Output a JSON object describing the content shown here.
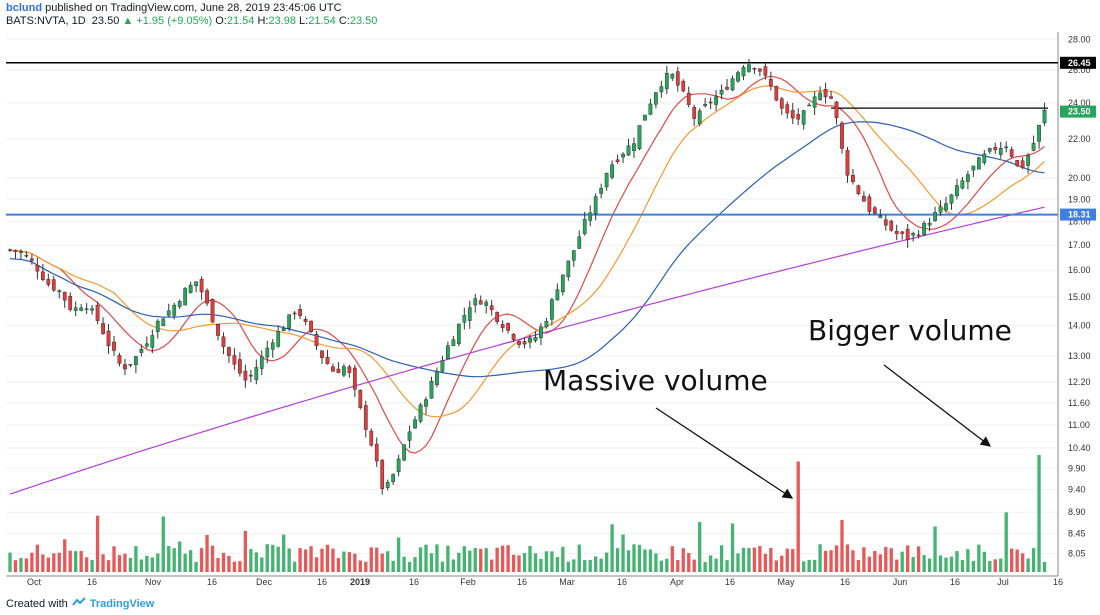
{
  "header": {
    "user": "bclund",
    "published": "published on TradingView.com, June 28, 2019 23:45:06 UTC",
    "symbol": "BATS:NVTA, 1D",
    "last": "23.50",
    "change": "▲ +1.95 (+9.05%)",
    "o_label": "O:",
    "o_val": "21.54",
    "h_label": "H:",
    "h_val": "23.98",
    "l_label": "L:",
    "l_val": "21.54",
    "c_label": "C:",
    "c_val": "23.50"
  },
  "footer": {
    "prefix": "Created with",
    "brand": "TradingView"
  },
  "colors": {
    "up": "#26a65b",
    "down": "#e03c3c",
    "sma_fast": "#e04848",
    "sma_mid": "#f39a2e",
    "sma_slow": "#2b5fb0",
    "sma_long": "#b23ed2",
    "hline_black": "#000000",
    "hline_blue": "#3f7fe0"
  },
  "chart_data": {
    "type": "candlestick",
    "scale": "log",
    "ylim": [
      7.7,
      28.5
    ],
    "y_ticks": [
      "28.00",
      "26.00",
      "24.00",
      "22.00",
      "20.00",
      "19.00",
      "18.00",
      "17.00",
      "16.00",
      "15.00",
      "14.00",
      "13.00",
      "12.20",
      "11.60",
      "11.00",
      "10.40",
      "9.90",
      "9.40",
      "8.90",
      "8.45",
      "8.05"
    ],
    "x_ticks": [
      "Oct",
      "16",
      "Nov",
      "16",
      "Dec",
      "16",
      "2019",
      "16",
      "Feb",
      "16",
      "Mar",
      "16",
      "Apr",
      "16",
      "May",
      "16",
      "Jun",
      "16",
      "Jul",
      "16"
    ],
    "price_labels": [
      {
        "value": 26.45,
        "text": "26.45",
        "color": "#000000"
      },
      {
        "value": 23.5,
        "text": "23.50",
        "color": "#26a65b"
      },
      {
        "value": 18.31,
        "text": "18.31",
        "color": "#3f7fe0"
      }
    ],
    "horizontal_lines": [
      {
        "value": 26.45,
        "color": "black"
      },
      {
        "value": 18.31,
        "color": "blue"
      },
      {
        "value": 23.7,
        "color": "black",
        "segment": "May–Jul"
      }
    ],
    "annotations": [
      {
        "text": "Massive volume"
      },
      {
        "text": "Bigger volume"
      }
    ],
    "waypoints": [
      16.8,
      16.7,
      16.2,
      15.5,
      15.2,
      14.5,
      14.8,
      14.2,
      13.3,
      12.6,
      12.9,
      13.5,
      14.2,
      14.6,
      15.2,
      15.6,
      14.5,
      13.4,
      12.7,
      12.2,
      12.8,
      13.5,
      14.0,
      14.6,
      13.8,
      13.0,
      12.5,
      12.7,
      11.5,
      10.5,
      9.3,
      9.9,
      10.8,
      11.5,
      12.3,
      13.2,
      14.0,
      14.8,
      14.9,
      14.3,
      13.8,
      13.4,
      13.5,
      14.2,
      15.5,
      16.5,
      17.8,
      19.0,
      20.5,
      21.2,
      21.8,
      23.5,
      25.0,
      25.8,
      24.5,
      23.0,
      24.0,
      24.5,
      25.5,
      26.5,
      26.2,
      25.0,
      23.5,
      23.0,
      23.5,
      24.8,
      24.2,
      20.5,
      19.4,
      18.5,
      18.0,
      17.5,
      17.3,
      17.6,
      18.2,
      18.7,
      19.5,
      20.3,
      21.0,
      21.5,
      21.7,
      20.3,
      21.54,
      23.5
    ],
    "volume_bars": [
      {
        "x_index": 115,
        "relative": 1.0,
        "color": "red",
        "note": "Massive volume"
      },
      {
        "x_index": 145,
        "relative": 1.06,
        "color": "green",
        "note": "Bigger volume"
      }
    ],
    "moving_averages": [
      {
        "color": "red",
        "period": 10
      },
      {
        "color": "orange",
        "period": 20
      },
      {
        "color": "blue",
        "period": 50
      },
      {
        "color": "purple",
        "period": 200
      }
    ]
  }
}
